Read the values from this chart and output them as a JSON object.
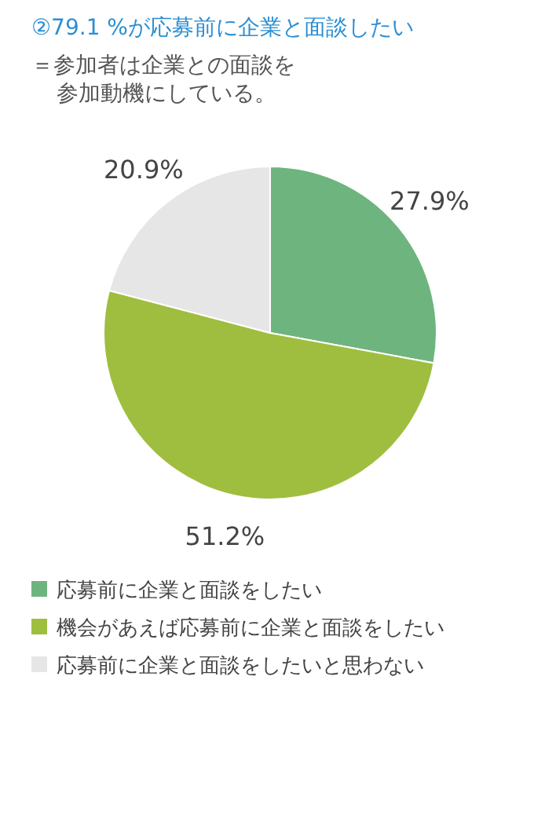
{
  "chart_data": {
    "type": "pie",
    "title": "②79.1 %が応募前に企業と面談したい",
    "subtitle": "＝参加者は企業との面談を参加動機にしている。",
    "categories": [
      "応募前に企業と面談をしたい",
      "機会があえば応募前に企業と面談をしたい",
      "応募前に企業と面談をしたいと思わない"
    ],
    "values": [
      27.9,
      51.2,
      20.9
    ],
    "colors": [
      "#6eb47f",
      "#9fbe40",
      "#e6e6e6"
    ],
    "value_labels": [
      "27.9%",
      "51.2%",
      "20.9%"
    ],
    "legend": "bottom"
  }
}
